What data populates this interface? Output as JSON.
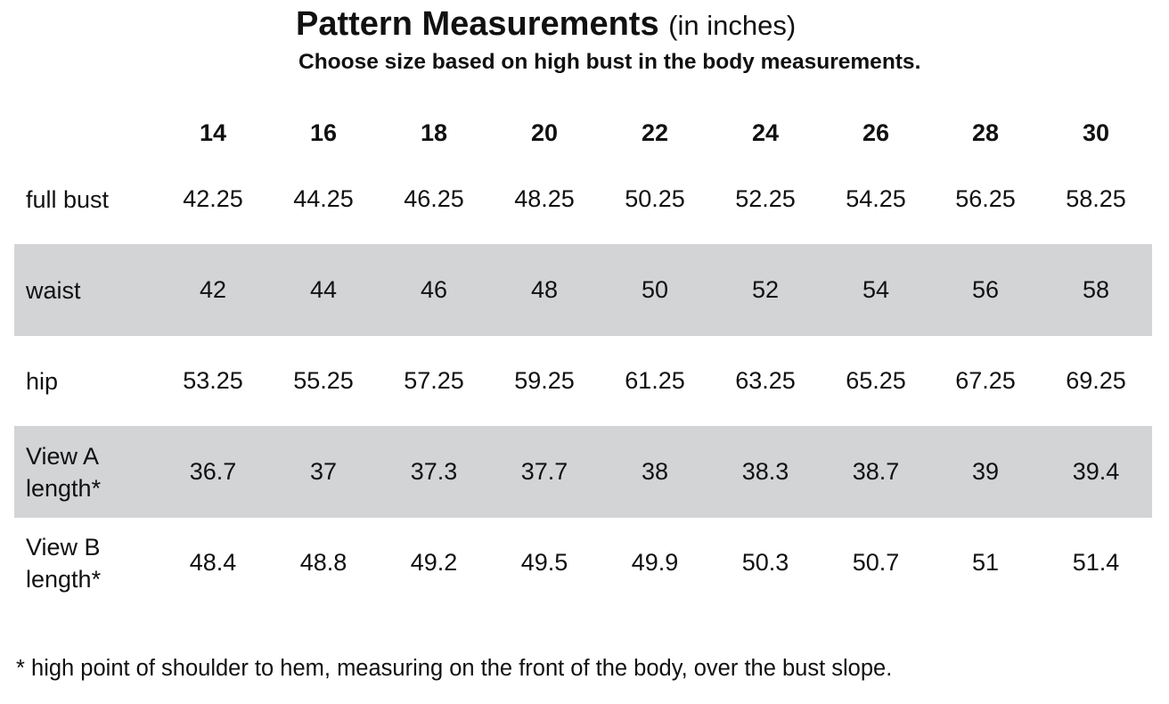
{
  "header": {
    "title": "Pattern Measurements",
    "title_unit": "(in inches)",
    "subtitle": "Choose size based on high bust in the body measurements."
  },
  "table": {
    "sizes": [
      "14",
      "16",
      "18",
      "20",
      "22",
      "24",
      "26",
      "28",
      "30"
    ],
    "rows": [
      {
        "label": "full bust",
        "shaded": false,
        "values": [
          "42.25",
          "44.25",
          "46.25",
          "48.25",
          "50.25",
          "52.25",
          "54.25",
          "56.25",
          "58.25"
        ]
      },
      {
        "label": "waist",
        "shaded": true,
        "values": [
          "42",
          "44",
          "46",
          "48",
          "50",
          "52",
          "54",
          "56",
          "58"
        ]
      },
      {
        "label": "hip",
        "shaded": false,
        "values": [
          "53.25",
          "55.25",
          "57.25",
          "59.25",
          "61.25",
          "63.25",
          "65.25",
          "67.25",
          "69.25"
        ]
      },
      {
        "label": "View A length*",
        "shaded": true,
        "values": [
          "36.7",
          "37",
          "37.3",
          "37.7",
          "38",
          "38.3",
          "38.7",
          "39",
          "39.4"
        ]
      },
      {
        "label": "View B length*",
        "shaded": false,
        "values": [
          "48.4",
          "48.8",
          "49.2",
          "49.5",
          "49.9",
          "50.3",
          "50.7",
          "51",
          "51.4"
        ]
      }
    ]
  },
  "footnote": "* high point of shoulder to hem, measuring on the front of the body, over the bust slope."
}
